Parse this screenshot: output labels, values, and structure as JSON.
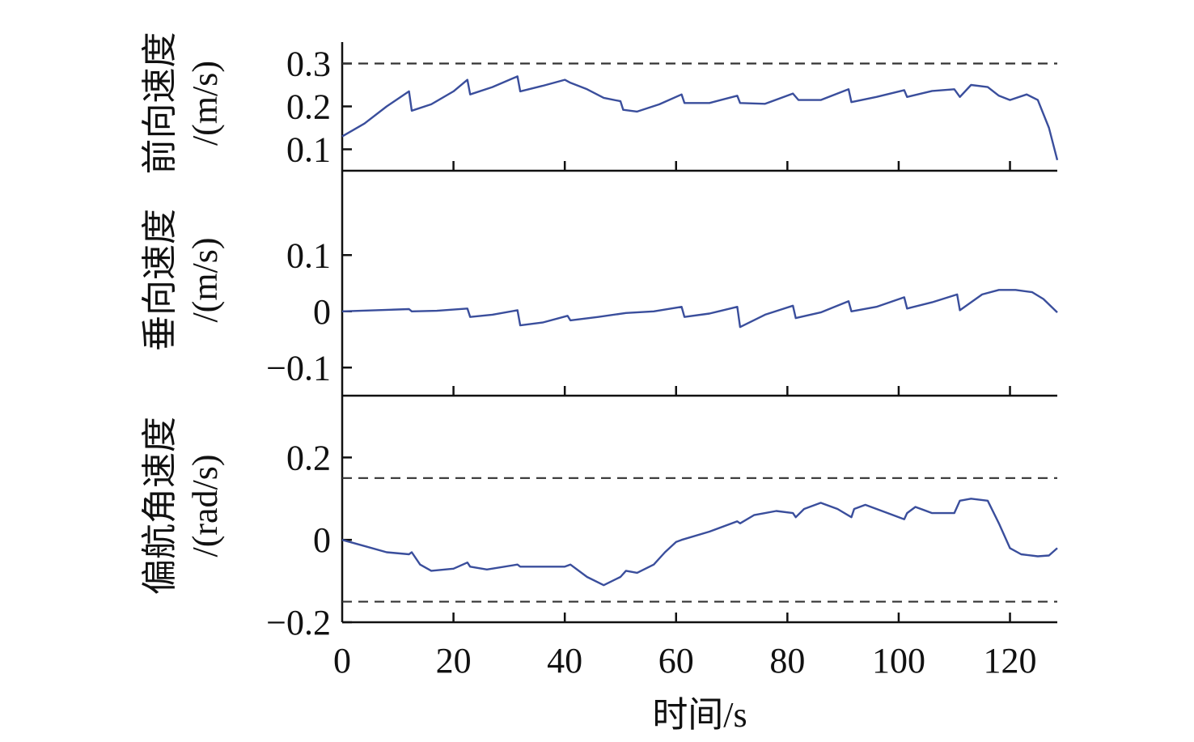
{
  "chart_data": [
    {
      "type": "line",
      "ylabel": "前向速度",
      "yunit": "/(m/s)",
      "ylim": [
        0.05,
        0.35
      ],
      "yticks": [
        0.1,
        0.2,
        0.3
      ],
      "ytick_labels": [
        "0.1",
        "0.2",
        "0.3"
      ],
      "ref_lines": [
        0.3
      ],
      "series": [
        {
          "color": "#3a4e9c",
          "x": [
            0,
            4,
            8,
            12,
            12.5,
            16,
            20,
            22.5,
            23,
            27,
            31.5,
            32,
            36,
            40,
            41,
            44,
            47,
            50,
            50.5,
            53,
            57,
            61,
            61.5,
            66,
            71,
            71.5,
            76,
            81,
            82,
            86,
            91,
            91.5,
            96,
            101,
            101.5,
            106,
            110,
            111,
            113,
            116,
            118,
            120,
            123,
            125,
            127,
            128.5
          ],
          "y": [
            0.13,
            0.16,
            0.2,
            0.235,
            0.19,
            0.205,
            0.235,
            0.262,
            0.228,
            0.245,
            0.27,
            0.235,
            0.248,
            0.262,
            0.255,
            0.24,
            0.22,
            0.212,
            0.192,
            0.188,
            0.205,
            0.228,
            0.208,
            0.208,
            0.225,
            0.208,
            0.206,
            0.23,
            0.215,
            0.215,
            0.24,
            0.21,
            0.222,
            0.238,
            0.222,
            0.236,
            0.24,
            0.222,
            0.25,
            0.245,
            0.225,
            0.215,
            0.228,
            0.215,
            0.15,
            0.075
          ]
        }
      ]
    },
    {
      "type": "line",
      "ylabel": "垂向速度",
      "yunit": "/(m/s)",
      "ylim": [
        -0.15,
        0.25
      ],
      "yticks": [
        -0.1,
        0,
        0.1
      ],
      "ytick_labels": [
        "−0.1",
        "0",
        "0.1"
      ],
      "ref_lines": [],
      "series": [
        {
          "color": "#3a4e9c",
          "x": [
            0,
            6,
            12,
            12.5,
            17,
            22.5,
            23,
            27,
            31.5,
            32,
            36,
            40.5,
            41,
            46,
            51,
            56,
            61,
            61.5,
            66,
            71,
            71.5,
            76,
            81,
            81.5,
            86,
            91,
            91.5,
            96,
            101,
            101.5,
            106,
            110.5,
            111,
            115,
            118,
            121,
            124,
            126,
            128.5
          ],
          "y": [
            0,
            0.002,
            0.004,
            0,
            0.001,
            0.005,
            -0.01,
            -0.006,
            0.002,
            -0.025,
            -0.02,
            -0.008,
            -0.016,
            -0.01,
            -0.003,
            0,
            0.008,
            -0.01,
            -0.004,
            0.008,
            -0.028,
            -0.006,
            0.01,
            -0.012,
            -0.002,
            0.018,
            0,
            0.008,
            0.025,
            0.005,
            0.016,
            0.03,
            0.002,
            0.03,
            0.038,
            0.038,
            0.034,
            0.022,
            -0.002
          ]
        }
      ]
    },
    {
      "type": "line",
      "ylabel": "偏航角速度",
      "yunit": "/(rad/s)",
      "ylim": [
        -0.2,
        0.35
      ],
      "yticks": [
        -0.2,
        0,
        0.2
      ],
      "ytick_labels": [
        "−0.2",
        "0",
        "0.2"
      ],
      "ref_lines": [
        0.15,
        -0.15
      ],
      "xlabel": "时间/s",
      "xlim": [
        0,
        128.5
      ],
      "xticks": [
        0,
        20,
        40,
        60,
        80,
        100,
        120
      ],
      "xtick_labels": [
        "0",
        "20",
        "40",
        "60",
        "80",
        "100",
        "120"
      ],
      "series": [
        {
          "color": "#3a4e9c",
          "x": [
            0,
            4,
            8,
            12,
            12.5,
            14,
            16,
            20,
            22.5,
            23,
            26,
            31.5,
            32,
            34,
            40,
            41,
            44,
            47,
            50,
            51,
            53,
            56,
            58,
            60,
            61,
            66,
            71,
            71.5,
            74,
            78,
            81,
            81.5,
            83,
            86,
            89,
            91.5,
            92,
            94,
            97,
            101,
            101.5,
            103,
            106,
            110,
            111,
            113,
            116,
            118,
            120,
            122,
            125,
            127,
            128.5
          ],
          "y": [
            0,
            -0.015,
            -0.03,
            -0.035,
            -0.03,
            -0.06,
            -0.075,
            -0.07,
            -0.055,
            -0.065,
            -0.072,
            -0.06,
            -0.065,
            -0.065,
            -0.065,
            -0.06,
            -0.09,
            -0.11,
            -0.09,
            -0.075,
            -0.08,
            -0.06,
            -0.03,
            -0.005,
            0,
            0.02,
            0.045,
            0.04,
            0.06,
            0.07,
            0.065,
            0.055,
            0.075,
            0.09,
            0.075,
            0.055,
            0.075,
            0.085,
            0.07,
            0.05,
            0.065,
            0.08,
            0.065,
            0.065,
            0.095,
            0.1,
            0.095,
            0.04,
            -0.02,
            -0.035,
            -0.04,
            -0.038,
            -0.02
          ]
        }
      ]
    }
  ]
}
